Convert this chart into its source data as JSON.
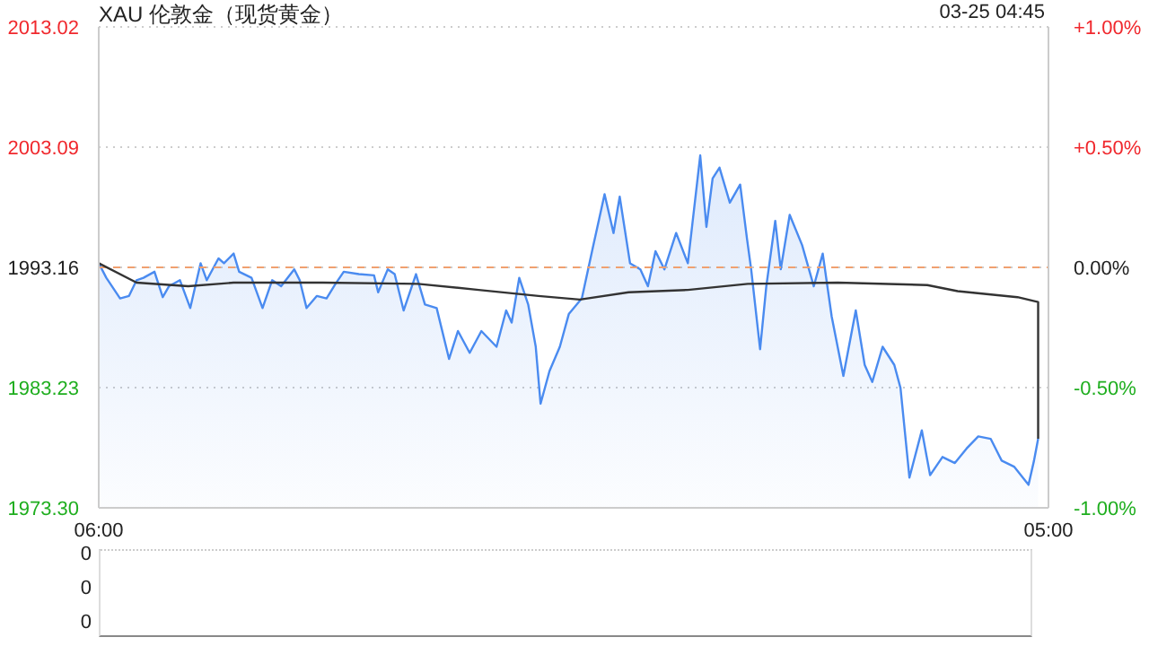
{
  "chart_data": [
    {
      "type": "line",
      "title": "XAU 伦敦金（现货黄金）",
      "annotations": [
        "03-25 04:45"
      ],
      "xlim": [
        "--03-24T06:00",
        "--03-25T05:00"
      ],
      "xticks": [
        {
          "value": "--03-24T06:00",
          "label": "06:00"
        },
        {
          "value": "--03-25T05:00",
          "label": "05:00"
        }
      ],
      "ylim": [
        1973.3,
        2013.02
      ],
      "yticks": [
        {
          "value": 1973.3,
          "label": "1973.30"
        },
        1983.23,
        1993.16,
        2003.09,
        2013.02
      ],
      "y2lim": [
        -1,
        1
      ],
      "y2ticks": [
        {
          "value": -1,
          "label": "-1.00%"
        },
        {
          "value": -0.5,
          "label": "-0.50%"
        },
        {
          "value": 0,
          "label": "0.00%"
        },
        {
          "value": 0.5,
          "label": "+0.50%"
        },
        {
          "value": 1,
          "label": "+1.00%"
        }
      ],
      "grid": "y",
      "marker": "none",
      "ref_lines": [
        {
          "axis": "y",
          "value": 1993.16,
          "color": "#f0a070",
          "line_style": "dashed"
        }
      ],
      "series": [
        {
          "type": "area",
          "color": "#4a8bf0",
          "x": [
            "--03-24T06:00",
            "--03-24T06:11",
            "--03-24T06:31",
            "--03-24T06:44",
            "--03-24T06:55",
            "--03-24T07:05",
            "--03-24T07:21",
            "--03-24T07:33",
            "--03-24T07:42",
            "--03-24T07:58",
            "--03-24T08:13",
            "--03-24T08:28",
            "--03-24T08:37",
            "--03-24T08:54",
            "--03-24T09:02",
            "--03-24T09:16",
            "--03-24T09:24",
            "--03-24T09:42",
            "--03-24T09:58",
            "--03-24T10:12",
            "--03-24T10:25",
            "--03-24T10:44",
            "--03-24T10:52",
            "--03-24T11:02",
            "--03-24T11:17",
            "--03-24T11:31",
            "--03-24T11:44",
            "--03-24T11:56",
            "--03-24T12:18",
            "--03-24T12:40",
            "--03-24T12:46",
            "--03-24T13:00",
            "--03-24T13:10",
            "--03-24T13:23",
            "--03-24T13:41",
            "--03-24T13:54",
            "--03-24T14:11",
            "--03-24T14:29",
            "--03-24T14:42",
            "--03-24T14:59",
            "--03-24T15:16",
            "--03-24T15:38",
            "--03-24T15:52",
            "--03-24T16:00",
            "--03-24T16:11",
            "--03-24T16:24",
            "--03-24T16:35",
            "--03-24T16:42",
            "--03-24T16:55",
            "--03-24T17:10",
            "--03-24T17:23",
            "--03-24T17:42",
            "--03-24T17:58",
            "--03-24T18:15",
            "--03-24T18:28",
            "--03-24T18:37",
            "--03-24T18:52",
            "--03-24T19:07",
            "--03-24T19:18",
            "--03-24T19:29",
            "--03-24T19:42",
            "--03-24T19:59",
            "--03-24T20:16",
            "--03-24T20:34",
            "--03-24T20:43",
            "--03-24T20:52",
            "--03-24T21:02",
            "--03-24T21:17",
            "--03-24T21:32",
            "--03-24T21:42",
            "--03-24T21:48",
            "--03-24T22:01",
            "--03-24T22:10",
            "--03-24T22:23",
            "--03-24T22:31",
            "--03-24T22:44",
            "--03-24T23:02",
            "--03-24T23:19",
            "--03-24T23:32",
            "--03-24T23:45",
            "--03-25T00:02",
            "--03-25T00:20",
            "--03-25T00:33",
            "--03-25T00:44",
            "--03-25T00:59",
            "--03-25T01:16",
            "--03-25T01:25",
            "--03-25T01:38",
            "--03-25T01:56",
            "--03-25T02:08",
            "--03-25T02:26",
            "--03-25T02:44",
            "--03-25T03:01",
            "--03-25T03:18",
            "--03-25T03:36",
            "--03-25T03:52",
            "--03-25T04:10",
            "--03-25T04:31",
            "--03-25T04:39",
            "--03-25T04:45"
          ],
          "values": [
            1993.5,
            1992.3,
            1990.6,
            1990.8,
            1992.1,
            1992.3,
            1992.8,
            1990.7,
            1991.6,
            1992.1,
            1989.8,
            1993.5,
            1992.1,
            1993.9,
            1993.5,
            1994.3,
            1992.8,
            1992.3,
            1989.8,
            1992.1,
            1991.6,
            1993.0,
            1992.1,
            1989.8,
            1990.8,
            1990.6,
            1991.8,
            1992.8,
            1992.6,
            1992.5,
            1991.1,
            1993.0,
            1992.6,
            1989.6,
            1992.6,
            1990.1,
            1989.8,
            1985.6,
            1987.9,
            1986.1,
            1987.9,
            1986.6,
            1989.6,
            1988.6,
            1992.3,
            1990.1,
            1986.6,
            1981.9,
            1984.6,
            1986.6,
            1989.3,
            1990.6,
            1994.8,
            1999.2,
            1996.0,
            1999.0,
            1993.5,
            1993.0,
            1991.6,
            1994.5,
            1993.0,
            1996.0,
            1993.5,
            2002.4,
            1996.5,
            2000.5,
            2001.4,
            1998.5,
            2000.0,
            1995.5,
            1993.0,
            1986.4,
            1991.6,
            1997.0,
            1993.0,
            1997.5,
            1995.0,
            1991.6,
            1994.3,
            1989.1,
            1984.2,
            1989.6,
            1985.1,
            1983.7,
            1986.6,
            1985.1,
            1983.2,
            1975.8,
            1979.7,
            1976.0,
            1977.5,
            1977.0,
            1978.2,
            1979.2,
            1979.0,
            1977.2,
            1976.7,
            1975.2,
            1977.2,
            1979.0
          ]
        },
        {
          "type": "line",
          "color": "#333333",
          "x": [
            "--03-24T06:00",
            "--03-24T06:55",
            "--03-24T08:10",
            "--03-24T09:16",
            "--03-24T11:26",
            "--03-24T13:44",
            "--03-24T15:12",
            "--03-24T16:39",
            "--03-24T17:39",
            "--03-24T18:50",
            "--03-24T20:16",
            "--03-24T21:43",
            "--03-24T23:54",
            "--03-25T02:04",
            "--03-25T02:48",
            "--03-25T04:15",
            "--03-25T04:45",
            "--03-25T04:45"
          ],
          "values": [
            1993.5,
            1991.9,
            1991.6,
            1991.9,
            1991.9,
            1991.8,
            1991.3,
            1990.8,
            1990.5,
            1991.1,
            1991.3,
            1991.8,
            1991.9,
            1991.7,
            1991.2,
            1990.7,
            1990.3,
            1979.0
          ]
        }
      ]
    },
    {
      "type": "other",
      "annotations": [
        "0",
        "0",
        "0"
      ]
    }
  ]
}
